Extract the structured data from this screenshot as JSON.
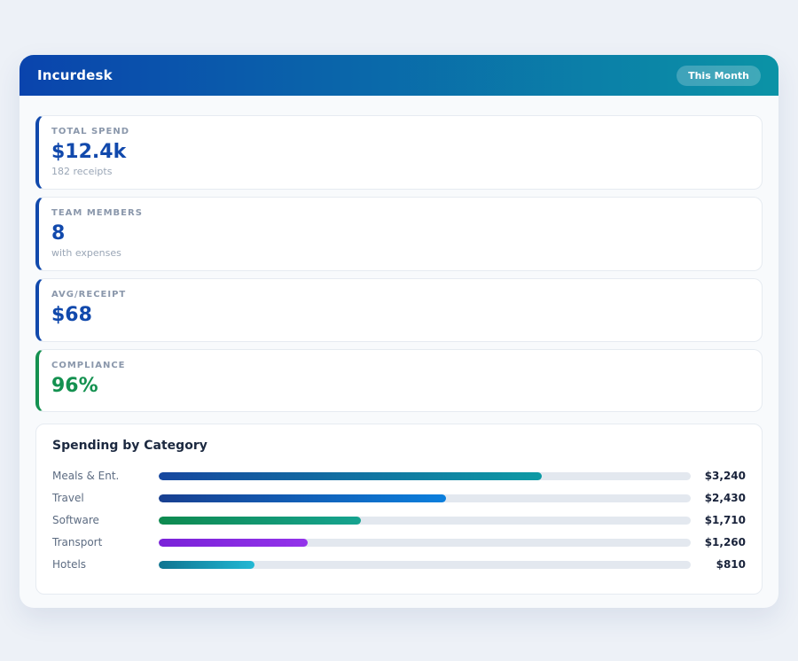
{
  "header": {
    "title": "Incurdesk",
    "badge": "This Month"
  },
  "stats": [
    {
      "label": "TOTAL SPEND",
      "value": "$12.4k",
      "sub": "182 receipts",
      "accent": "#1149ac",
      "value_color": "#1149ac"
    },
    {
      "label": "TEAM MEMBERS",
      "value": "8",
      "sub": "with expenses",
      "accent": "#1149ac",
      "value_color": "#1149ac"
    },
    {
      "label": "AVG/RECEIPT",
      "value": "$68",
      "sub": "",
      "accent": "#1149ac",
      "value_color": "#1149ac"
    },
    {
      "label": "COMPLIANCE",
      "value": "96%",
      "sub": "",
      "accent": "#149150",
      "value_color": "#149150"
    }
  ],
  "chart": {
    "title": "Spending by Category",
    "chart_data": {
      "type": "bar",
      "orientation": "horizontal",
      "title": "Spending by Category",
      "categories": [
        "Meals & Ent.",
        "Travel",
        "Software",
        "Transport",
        "Hotels"
      ],
      "values": [
        3240,
        2430,
        1710,
        1260,
        810
      ],
      "value_labels": [
        "$3,240",
        "$2,430",
        "$1,710",
        "$1,260",
        "$810"
      ],
      "xlim": [
        0,
        4500
      ],
      "grid": false,
      "legend": false,
      "track_color": "#e3e8ef",
      "bar_gradients": [
        [
          "#16479f",
          "#0d9aa4"
        ],
        [
          "#183f90",
          "#0b7fdd"
        ],
        [
          "#0e8a4f",
          "#16a390"
        ],
        [
          "#7a22d8",
          "#9333ea"
        ],
        [
          "#0e7490",
          "#22b8d4"
        ]
      ]
    }
  }
}
